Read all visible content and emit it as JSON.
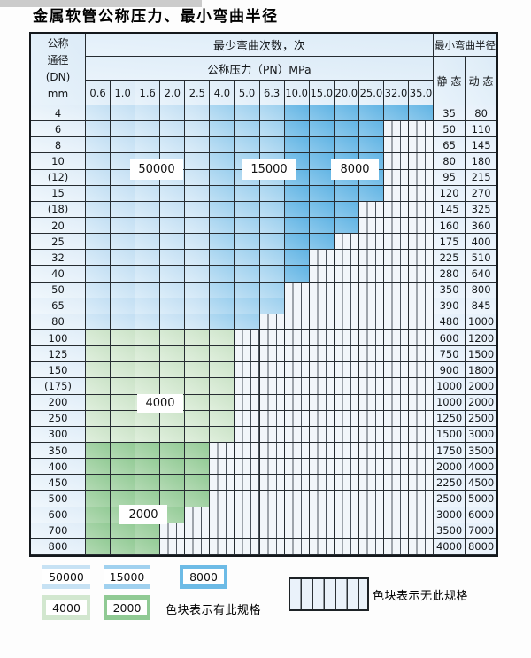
{
  "title": "金属软管公称压力、最小弯曲半径",
  "table": {
    "header": {
      "dn_lines": [
        "公称",
        "通径",
        "(DN)",
        "mm"
      ],
      "bend_cycles_label": "最少弯曲次数，次",
      "pn_label": "公称压力（PN）MPa",
      "radius_label": "最小弯曲半径",
      "static_label": "静 态",
      "dynamic_label": "动 态"
    },
    "pressure_columns": [
      "0.6",
      "1.0",
      "1.6",
      "2.0",
      "2.5",
      "4.0",
      "5.0",
      "6.3",
      "10.0",
      "15.0",
      "20.0",
      "25.0",
      "32.0",
      "35.0"
    ],
    "cycle_bands": {
      "blue_rows_by_pressure": [
        {
          "cycles": "50000",
          "pn_min": 0.6,
          "pn_max": 2.5
        },
        {
          "cycles": "15000",
          "pn_min": 4.0,
          "pn_max": 6.3
        },
        {
          "cycles": "8000",
          "pn_min": 10.0,
          "pn_max": 35.0
        }
      ],
      "green_rows_by_dn": [
        {
          "cycles": "4000",
          "dn_min": "100",
          "dn_max": "300"
        },
        {
          "cycles": "2000",
          "dn_min": "350",
          "dn_max": "800"
        }
      ]
    },
    "rows": [
      {
        "dn": "4",
        "max_pn": 35.0,
        "band": "blue",
        "static": "35",
        "dynamic": "80"
      },
      {
        "dn": "6",
        "max_pn": 25.0,
        "band": "blue",
        "static": "50",
        "dynamic": "110"
      },
      {
        "dn": "8",
        "max_pn": 25.0,
        "band": "blue",
        "static": "65",
        "dynamic": "145"
      },
      {
        "dn": "10",
        "max_pn": 25.0,
        "band": "blue",
        "static": "80",
        "dynamic": "180"
      },
      {
        "dn": "(12)",
        "max_pn": 25.0,
        "band": "blue",
        "static": "95",
        "dynamic": "215"
      },
      {
        "dn": "15",
        "max_pn": 25.0,
        "band": "blue",
        "static": "120",
        "dynamic": "270"
      },
      {
        "dn": "(18)",
        "max_pn": 20.0,
        "band": "blue",
        "static": "145",
        "dynamic": "325"
      },
      {
        "dn": "20",
        "max_pn": 20.0,
        "band": "blue",
        "static": "160",
        "dynamic": "360"
      },
      {
        "dn": "25",
        "max_pn": 15.0,
        "band": "blue",
        "static": "175",
        "dynamic": "400"
      },
      {
        "dn": "32",
        "max_pn": 10.0,
        "band": "blue",
        "static": "225",
        "dynamic": "510"
      },
      {
        "dn": "40",
        "max_pn": 10.0,
        "band": "blue",
        "static": "280",
        "dynamic": "640"
      },
      {
        "dn": "50",
        "max_pn": 6.3,
        "band": "blue",
        "static": "350",
        "dynamic": "800"
      },
      {
        "dn": "65",
        "max_pn": 6.3,
        "band": "blue",
        "static": "390",
        "dynamic": "845"
      },
      {
        "dn": "80",
        "max_pn": 5.0,
        "band": "blue",
        "static": "480",
        "dynamic": "1000"
      },
      {
        "dn": "100",
        "max_pn": 4.0,
        "band": "green4",
        "static": "600",
        "dynamic": "1200"
      },
      {
        "dn": "125",
        "max_pn": 4.0,
        "band": "green4",
        "static": "750",
        "dynamic": "1500"
      },
      {
        "dn": "150",
        "max_pn": 4.0,
        "band": "green4",
        "static": "900",
        "dynamic": "1800"
      },
      {
        "dn": "(175)",
        "max_pn": 4.0,
        "band": "green4",
        "static": "1000",
        "dynamic": "2000"
      },
      {
        "dn": "200",
        "max_pn": 4.0,
        "band": "green4",
        "static": "1000",
        "dynamic": "2000"
      },
      {
        "dn": "250",
        "max_pn": 4.0,
        "band": "green4",
        "static": "1250",
        "dynamic": "2500"
      },
      {
        "dn": "300",
        "max_pn": 4.0,
        "band": "green4",
        "static": "1500",
        "dynamic": "3000"
      },
      {
        "dn": "350",
        "max_pn": 2.5,
        "band": "green2",
        "static": "1750",
        "dynamic": "3500"
      },
      {
        "dn": "400",
        "max_pn": 2.5,
        "band": "green2",
        "static": "2000",
        "dynamic": "4000"
      },
      {
        "dn": "450",
        "max_pn": 2.5,
        "band": "green2",
        "static": "2250",
        "dynamic": "4500"
      },
      {
        "dn": "500",
        "max_pn": 2.5,
        "band": "green2",
        "static": "2500",
        "dynamic": "5000"
      },
      {
        "dn": "600",
        "max_pn": 2.0,
        "band": "green2",
        "static": "3000",
        "dynamic": "6000"
      },
      {
        "dn": "700",
        "max_pn": 1.6,
        "band": "green2",
        "static": "3500",
        "dynamic": "7000"
      },
      {
        "dn": "800",
        "max_pn": 1.6,
        "band": "green2",
        "static": "4000",
        "dynamic": "8000"
      }
    ]
  },
  "overlay_labels": {
    "l50000": "50000",
    "l15000": "15000",
    "l8000": "8000",
    "l4000": "4000",
    "l2000": "2000"
  },
  "legend": {
    "items": [
      {
        "label": "50000",
        "color": "#c7e2f4"
      },
      {
        "label": "15000",
        "color": "#a0d1ef"
      },
      {
        "label": "8000",
        "color": "#6dbbe6"
      },
      {
        "label": "4000",
        "color": "#d2e7cf"
      },
      {
        "label": "2000",
        "color": "#90ca94"
      }
    ],
    "has_spec_text": "色块表示有此规格",
    "no_spec_text": "色块表示无此规格"
  }
}
